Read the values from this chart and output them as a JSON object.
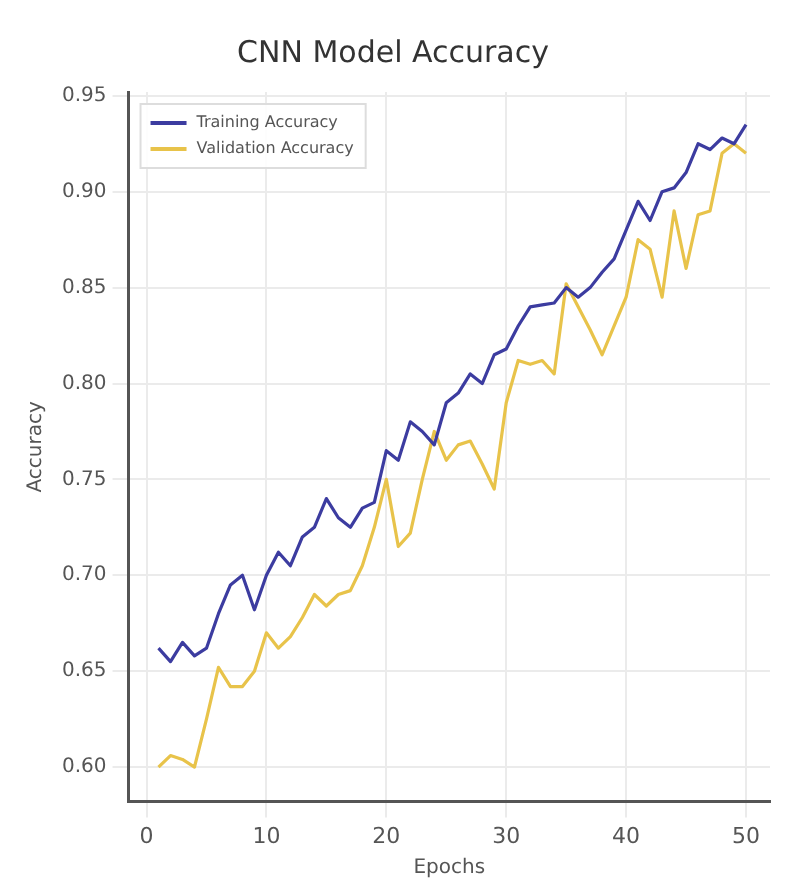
{
  "chart_data": {
    "type": "line",
    "title": "CNN Model Accuracy",
    "xlabel": "Epochs",
    "ylabel": "Accuracy",
    "x": [
      1,
      2,
      3,
      4,
      5,
      6,
      7,
      8,
      9,
      10,
      11,
      12,
      13,
      14,
      15,
      16,
      17,
      18,
      19,
      20,
      21,
      22,
      23,
      24,
      25,
      26,
      27,
      28,
      29,
      30,
      31,
      32,
      33,
      34,
      35,
      36,
      37,
      38,
      39,
      40,
      41,
      42,
      43,
      44,
      45,
      46,
      47,
      48,
      49,
      50
    ],
    "series": [
      {
        "name": "Training Accuracy",
        "color": "#3c3ca0",
        "values": [
          0.662,
          0.655,
          0.665,
          0.658,
          0.662,
          0.68,
          0.695,
          0.7,
          0.682,
          0.7,
          0.712,
          0.705,
          0.72,
          0.725,
          0.74,
          0.73,
          0.725,
          0.735,
          0.738,
          0.765,
          0.76,
          0.78,
          0.775,
          0.768,
          0.79,
          0.795,
          0.805,
          0.8,
          0.815,
          0.818,
          0.83,
          0.84,
          0.841,
          0.842,
          0.85,
          0.845,
          0.85,
          0.858,
          0.865,
          0.88,
          0.895,
          0.885,
          0.9,
          0.902,
          0.91,
          0.925,
          0.922,
          0.928,
          0.925,
          0.935
        ]
      },
      {
        "name": "Validation Accuracy",
        "color": "#e8c34a",
        "values": [
          0.6,
          0.606,
          0.604,
          0.6,
          0.625,
          0.652,
          0.642,
          0.642,
          0.65,
          0.67,
          0.662,
          0.668,
          0.678,
          0.69,
          0.684,
          0.69,
          0.692,
          0.705,
          0.725,
          0.75,
          0.715,
          0.722,
          0.75,
          0.775,
          0.76,
          0.768,
          0.77,
          0.758,
          0.745,
          0.79,
          0.812,
          0.81,
          0.812,
          0.805,
          0.852,
          0.84,
          0.828,
          0.815,
          0.83,
          0.845,
          0.875,
          0.87,
          0.845,
          0.89,
          0.86,
          0.888,
          0.89,
          0.92,
          0.925,
          0.92
        ]
      }
    ],
    "xlim": [
      -1.5,
      52
    ],
    "xticks": [
      0,
      10,
      20,
      30,
      40,
      50
    ],
    "ylim": [
      0.582,
      0.952
    ],
    "yticks": [
      {
        "value": 0.6,
        "label": "0.60"
      },
      {
        "value": 0.65,
        "label": "0.65"
      },
      {
        "value": 0.7,
        "label": "0.70"
      },
      {
        "value": 0.75,
        "label": "0.75"
      },
      {
        "value": 0.8,
        "label": "0.80"
      },
      {
        "value": 0.85,
        "label": "0.85"
      },
      {
        "value": 0.9,
        "label": "0.90"
      },
      {
        "value": 0.95,
        "label": "0.95"
      }
    ],
    "grid": true,
    "legend": "top left",
    "marker": "none",
    "line_style": "solid"
  }
}
